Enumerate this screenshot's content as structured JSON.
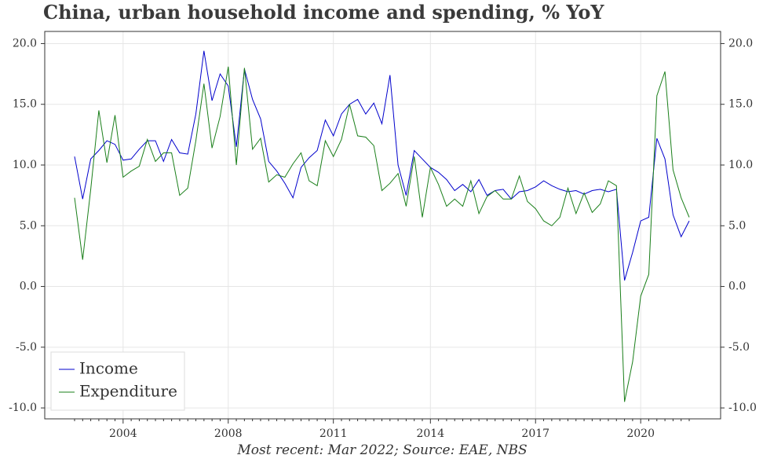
{
  "chart_data": {
    "type": "line",
    "title": "China, urban household income and spending, % YoY",
    "footnote": "Most recent: Mar 2022; Source: EAE, NBS",
    "categories": [
      null,
      null,
      null,
      null,
      null,
      null,
      "2004",
      null,
      null,
      null,
      null,
      null,
      null,
      null,
      null,
      null,
      null,
      null,
      null,
      "2008",
      null,
      null,
      null,
      null,
      null,
      null,
      null,
      null,
      null,
      null,
      null,
      null,
      "2011",
      null,
      null,
      null,
      null,
      null,
      null,
      null,
      null,
      null,
      null,
      null,
      "2014",
      null,
      null,
      null,
      null,
      null,
      null,
      null,
      null,
      null,
      null,
      null,
      null,
      "2017",
      null,
      null,
      null,
      null,
      null,
      null,
      null,
      null,
      null,
      null,
      null,
      null,
      "2020",
      null,
      null,
      null,
      null,
      null,
      null
    ],
    "series": [
      {
        "name": "Income",
        "color": "#0000cc",
        "values": [
          10.7,
          7.2,
          10.5,
          11.2,
          12.0,
          11.7,
          10.4,
          10.5,
          11.3,
          12.0,
          12.0,
          10.3,
          12.1,
          11.0,
          10.9,
          14.2,
          19.4,
          15.3,
          17.5,
          16.5,
          11.5,
          17.9,
          15.4,
          13.8,
          10.3,
          9.5,
          8.5,
          7.3,
          9.8,
          10.6,
          11.2,
          13.7,
          12.4,
          14.2,
          15.0,
          15.4,
          14.2,
          15.1,
          13.4,
          17.4,
          10.0,
          7.5,
          11.2,
          10.5,
          9.8,
          9.4,
          8.8,
          7.9,
          8.4,
          7.8,
          8.8,
          7.5,
          7.9,
          8.0,
          7.2,
          7.8,
          7.9,
          8.2,
          8.7,
          8.3,
          8.0,
          7.8,
          7.9,
          7.6,
          7.9,
          8.0,
          7.8,
          8.0,
          0.5,
          2.8,
          5.4,
          5.7,
          12.2,
          10.5,
          5.9,
          4.1,
          5.4
        ]
      },
      {
        "name": "Expenditure",
        "color": "#1a7f1a",
        "values": [
          7.3,
          2.2,
          8.0,
          14.5,
          10.2,
          14.1,
          9.0,
          9.5,
          9.9,
          12.1,
          10.3,
          11.0,
          11.0,
          7.5,
          8.1,
          12.0,
          16.7,
          11.4,
          14.0,
          18.1,
          10.0,
          18.0,
          11.3,
          12.2,
          8.6,
          9.2,
          9.0,
          10.1,
          11.0,
          8.7,
          8.3,
          12.0,
          10.7,
          12.1,
          15.0,
          12.4,
          12.3,
          11.6,
          7.9,
          8.5,
          9.3,
          6.6,
          10.7,
          5.7,
          9.8,
          8.4,
          6.6,
          7.2,
          6.6,
          8.7,
          6.0,
          7.4,
          7.9,
          7.2,
          7.2,
          9.1,
          7.0,
          6.4,
          5.4,
          5.0,
          5.7,
          8.1,
          6.0,
          7.7,
          6.1,
          6.8,
          8.7,
          8.3,
          -9.5,
          -6.2,
          -0.8,
          1.0,
          15.7,
          17.7,
          9.6,
          7.3,
          5.7
        ]
      }
    ],
    "ylim": [
      -10.9,
      21
    ],
    "yticks": [
      {
        "value": -10,
        "label": "-10.0"
      },
      {
        "value": -5,
        "label": "-5.0"
      },
      {
        "value": 0,
        "label": "0.0"
      },
      {
        "value": 5,
        "label": "5.0"
      },
      {
        "value": 10,
        "label": "10.0"
      },
      {
        "value": 15,
        "label": "15.0"
      },
      {
        "value": 20,
        "label": "20.0"
      }
    ],
    "y2lim": [
      -10.9,
      21
    ],
    "y2ticks": [
      {
        "value": -10,
        "label": "-10.0"
      },
      {
        "value": -5,
        "label": "-5.0"
      },
      {
        "value": 0,
        "label": "0.0"
      },
      {
        "value": 5,
        "label": "5.0"
      },
      {
        "value": 10,
        "label": "10.0"
      },
      {
        "value": 15,
        "label": "15.0"
      },
      {
        "value": 20,
        "label": "20.0"
      }
    ],
    "grid": true,
    "legend": "lower left"
  }
}
